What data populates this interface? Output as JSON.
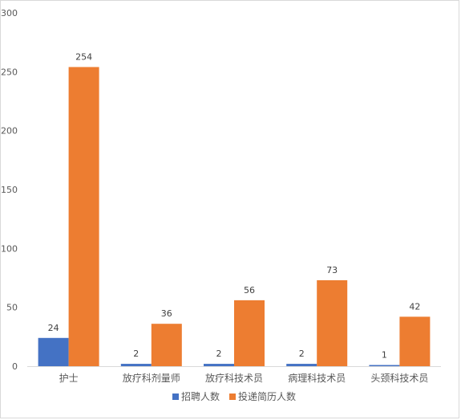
{
  "chart_data": {
    "type": "bar",
    "categories": [
      "护士",
      "放疗科剂量师",
      "放疗科技术员",
      "病理科技术员",
      "头颈科技术员"
    ],
    "series": [
      {
        "name": "招聘人数",
        "values": [
          24,
          2,
          2,
          2,
          1
        ],
        "color": "#4472C4"
      },
      {
        "name": "投递简历人数",
        "values": [
          254,
          36,
          56,
          73,
          42
        ],
        "color": "#ED7D31"
      }
    ],
    "yticks": [
      0,
      50,
      100,
      150,
      200,
      250,
      300
    ],
    "ylim": [
      0,
      300
    ],
    "grid": false,
    "legend": "bottom",
    "data_labels": true
  }
}
